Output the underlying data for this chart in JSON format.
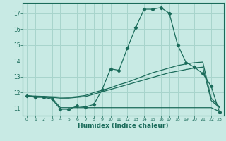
{
  "xlabel": "Humidex (Indice chaleur)",
  "background_color": "#c8eae4",
  "grid_color": "#a8d4cc",
  "line_color": "#1a6b5a",
  "x": [
    0,
    1,
    2,
    3,
    4,
    5,
    6,
    7,
    8,
    9,
    10,
    11,
    12,
    13,
    14,
    15,
    16,
    17,
    18,
    19,
    20,
    21,
    22,
    23
  ],
  "line_main": [
    11.8,
    11.7,
    11.7,
    11.6,
    10.95,
    10.95,
    11.15,
    11.1,
    11.25,
    12.2,
    13.5,
    13.4,
    14.8,
    16.1,
    17.25,
    17.25,
    17.35,
    17.0,
    15.0,
    13.9,
    13.6,
    13.2,
    12.4,
    10.75
  ],
  "line_low": [
    11.8,
    11.75,
    11.72,
    11.68,
    11.05,
    11.05,
    11.05,
    11.05,
    11.05,
    11.05,
    11.05,
    11.05,
    11.05,
    11.05,
    11.05,
    11.05,
    11.05,
    11.05,
    11.05,
    11.05,
    11.05,
    11.05,
    11.05,
    10.8
  ],
  "line_mid": [
    11.8,
    11.75,
    11.75,
    11.7,
    11.65,
    11.65,
    11.7,
    11.75,
    11.9,
    12.05,
    12.2,
    12.35,
    12.5,
    12.65,
    12.8,
    12.95,
    13.1,
    13.25,
    13.35,
    13.45,
    13.55,
    13.6,
    11.5,
    11.05
  ],
  "line_high": [
    11.8,
    11.78,
    11.76,
    11.74,
    11.72,
    11.7,
    11.75,
    11.82,
    12.0,
    12.15,
    12.3,
    12.5,
    12.65,
    12.85,
    13.05,
    13.25,
    13.4,
    13.55,
    13.7,
    13.8,
    13.88,
    13.92,
    11.65,
    11.1
  ],
  "ylim": [
    10.55,
    17.65
  ],
  "xlim": [
    -0.5,
    23.5
  ],
  "yticks": [
    11,
    12,
    13,
    14,
    15,
    16,
    17
  ],
  "xticks": [
    0,
    1,
    2,
    3,
    4,
    5,
    6,
    7,
    8,
    9,
    10,
    11,
    12,
    13,
    14,
    15,
    16,
    17,
    18,
    19,
    20,
    21,
    22,
    23
  ]
}
